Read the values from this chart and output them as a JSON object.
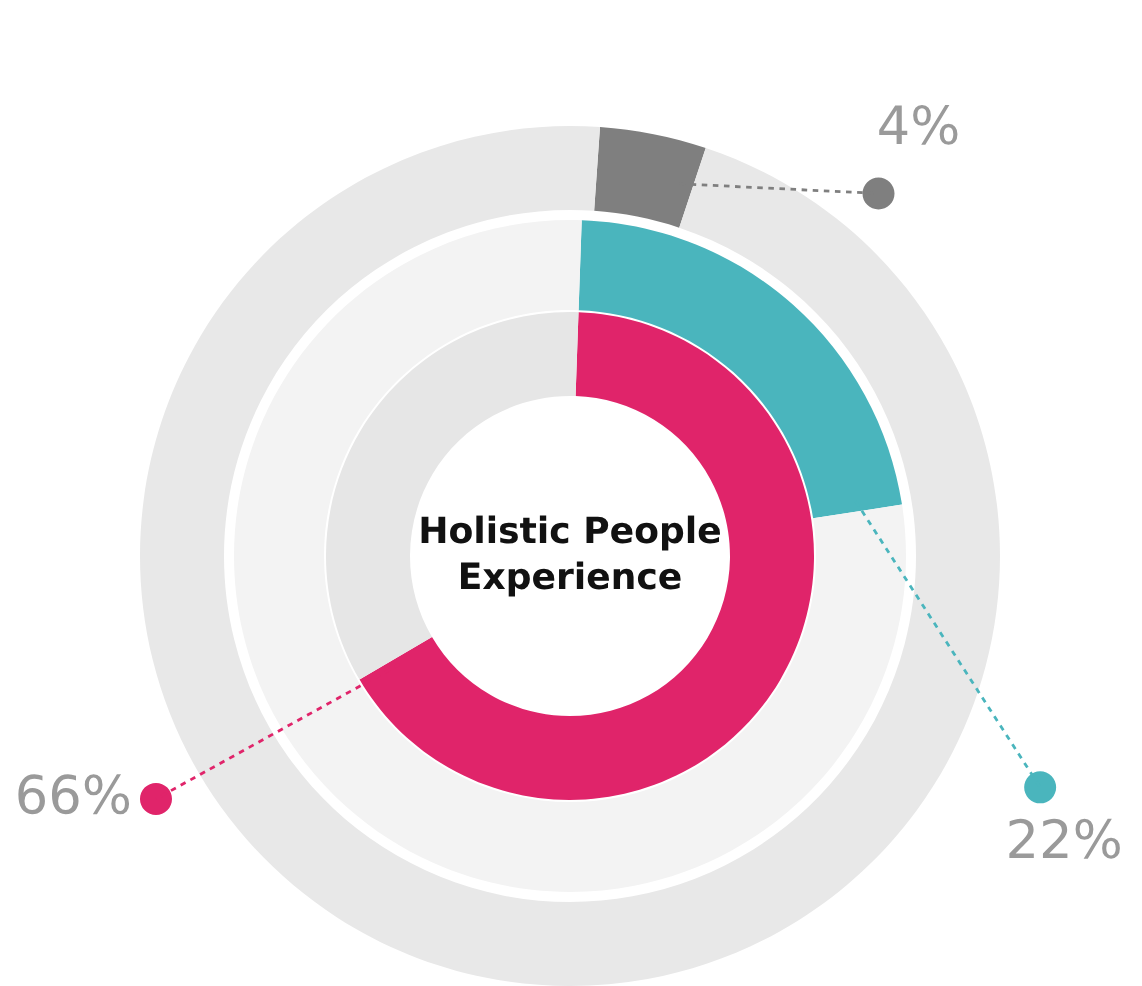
{
  "chart_data": {
    "type": "donut",
    "title": "Holistic People Experience",
    "categories": [
      null,
      null
    ],
    "series": [
      {
        "values": [
          66,
          34
        ],
        "colors": [
          "#e0246a",
          "#e6e6e6"
        ],
        "value_labels": [
          "66%",
          null
        ]
      },
      {
        "values": [
          22,
          78
        ],
        "colors": [
          "#4ab5bd",
          "#f3f3f3"
        ],
        "value_labels": [
          "22%",
          null
        ]
      },
      {
        "values": [
          4,
          96
        ],
        "colors": [
          "#7f7f7f",
          "#e8e8e8"
        ],
        "value_labels": [
          "4%",
          null
        ]
      }
    ]
  }
}
